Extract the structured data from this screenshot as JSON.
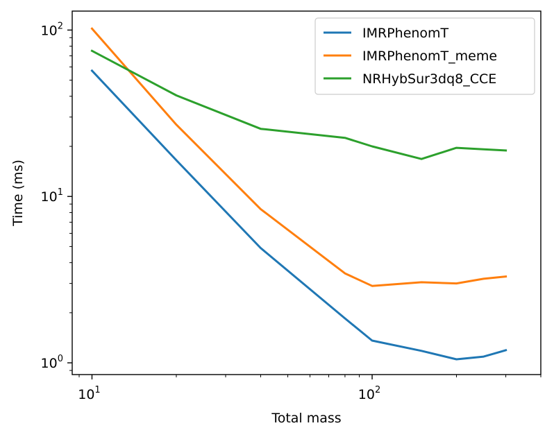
{
  "chart_data": {
    "type": "line",
    "xlabel": "Total mass",
    "ylabel": "Time (ms)",
    "xscale": "log",
    "yscale": "log",
    "xlim": [
      8.5,
      400
    ],
    "ylim": [
      0.85,
      130
    ],
    "x_major_ticks": [
      {
        "value": 10,
        "base": "10",
        "exp": "1"
      },
      {
        "value": 100,
        "base": "10",
        "exp": "2"
      }
    ],
    "y_major_ticks": [
      {
        "value": 1,
        "base": "10",
        "exp": "0"
      },
      {
        "value": 10,
        "base": "10",
        "exp": "1"
      },
      {
        "value": 100,
        "base": "10",
        "exp": "2"
      }
    ],
    "grid": false,
    "legend_position": "top-right",
    "x": [
      10,
      20,
      40,
      80,
      100,
      150,
      200,
      250,
      300
    ],
    "series": [
      {
        "name": "IMRPhenomT",
        "color": "#1f77b4",
        "values": [
          57,
          16.5,
          4.9,
          1.85,
          1.36,
          1.18,
          1.05,
          1.09,
          1.19
        ]
      },
      {
        "name": "IMRPhenomT_meme",
        "color": "#ff7f0e",
        "values": [
          102,
          27,
          8.4,
          3.45,
          2.9,
          3.05,
          3.0,
          3.2,
          3.3
        ]
      },
      {
        "name": "NRHybSur3dq8_CCE",
        "color": "#2ca02c",
        "values": [
          75,
          40.5,
          25.5,
          22.5,
          20.0,
          16.8,
          19.6,
          19.2,
          18.9
        ]
      }
    ]
  }
}
